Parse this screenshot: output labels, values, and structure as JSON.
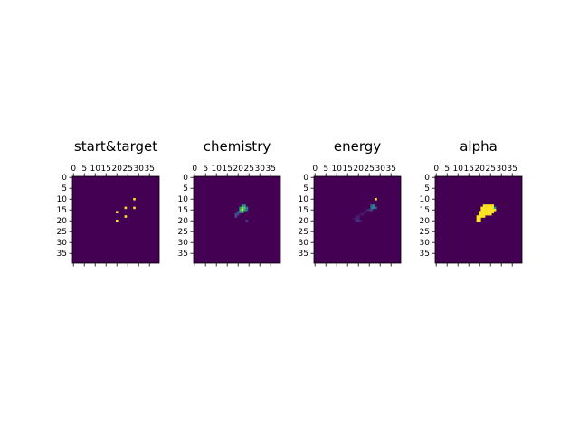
{
  "chart_data": [
    {
      "type": "heatmap",
      "title": "start&target",
      "grid_size": 40,
      "xticks": [
        "0",
        "5",
        "10",
        "15",
        "20",
        "25",
        "30",
        "35"
      ],
      "yticks": [
        "0",
        "5",
        "10",
        "15",
        "20",
        "25",
        "30",
        "35"
      ],
      "background": "#440154",
      "cells": [
        {
          "x": 28,
          "y": 10,
          "v": 1.0
        },
        {
          "x": 24,
          "y": 14,
          "v": 1.0
        },
        {
          "x": 28,
          "y": 14,
          "v": 1.0
        },
        {
          "x": 20,
          "y": 16,
          "v": 1.0
        },
        {
          "x": 24,
          "y": 18,
          "v": 1.0
        },
        {
          "x": 20,
          "y": 20,
          "v": 1.0
        }
      ]
    },
    {
      "type": "heatmap",
      "title": "chemistry",
      "grid_size": 40,
      "xticks": [
        "0",
        "5",
        "10",
        "15",
        "20",
        "25",
        "30",
        "35"
      ],
      "yticks": [
        "0",
        "5",
        "10",
        "15",
        "20",
        "25",
        "30",
        "35"
      ],
      "background": "#440154",
      "cells": [
        {
          "x": 22,
          "y": 13,
          "v": 0.45
        },
        {
          "x": 23,
          "y": 13,
          "v": 0.5
        },
        {
          "x": 21,
          "y": 14,
          "v": 0.55
        },
        {
          "x": 22,
          "y": 14,
          "v": 0.85
        },
        {
          "x": 23,
          "y": 14,
          "v": 0.7
        },
        {
          "x": 24,
          "y": 14,
          "v": 0.4
        },
        {
          "x": 21,
          "y": 15,
          "v": 0.65
        },
        {
          "x": 22,
          "y": 15,
          "v": 0.95
        },
        {
          "x": 23,
          "y": 15,
          "v": 0.6
        },
        {
          "x": 24,
          "y": 15,
          "v": 0.35
        },
        {
          "x": 20,
          "y": 16,
          "v": 0.3
        },
        {
          "x": 21,
          "y": 16,
          "v": 0.45
        },
        {
          "x": 22,
          "y": 16,
          "v": 0.5
        },
        {
          "x": 19,
          "y": 17,
          "v": 0.25
        },
        {
          "x": 20,
          "y": 17,
          "v": 0.2
        },
        {
          "x": 19,
          "y": 18,
          "v": 0.25
        },
        {
          "x": 24,
          "y": 20,
          "v": 0.2
        }
      ]
    },
    {
      "type": "heatmap",
      "title": "energy",
      "grid_size": 40,
      "xticks": [
        "0",
        "5",
        "10",
        "15",
        "20",
        "25",
        "30",
        "35"
      ],
      "yticks": [
        "0",
        "5",
        "10",
        "15",
        "20",
        "25",
        "30",
        "35"
      ],
      "background": "#440154",
      "cells": [
        {
          "x": 28,
          "y": 10,
          "v": 1.0
        },
        {
          "x": 26,
          "y": 13,
          "v": 0.35
        },
        {
          "x": 27,
          "y": 13,
          "v": 0.45
        },
        {
          "x": 26,
          "y": 14,
          "v": 0.4
        },
        {
          "x": 27,
          "y": 14,
          "v": 0.5
        },
        {
          "x": 28,
          "y": 14,
          "v": 0.3
        },
        {
          "x": 25,
          "y": 15,
          "v": 0.15
        },
        {
          "x": 26,
          "y": 15,
          "v": 0.2
        },
        {
          "x": 24,
          "y": 15,
          "v": 0.08
        },
        {
          "x": 23,
          "y": 16,
          "v": 0.08
        },
        {
          "x": 22,
          "y": 17,
          "v": 0.07
        },
        {
          "x": 21,
          "y": 17,
          "v": 0.06
        },
        {
          "x": 20,
          "y": 18,
          "v": 0.08
        },
        {
          "x": 19,
          "y": 18,
          "v": 0.06
        },
        {
          "x": 19,
          "y": 19,
          "v": 0.1
        },
        {
          "x": 20,
          "y": 19,
          "v": 0.09
        },
        {
          "x": 19,
          "y": 20,
          "v": 0.12
        },
        {
          "x": 20,
          "y": 20,
          "v": 0.14
        },
        {
          "x": 21,
          "y": 20,
          "v": 0.07
        },
        {
          "x": 18,
          "y": 19,
          "v": 0.05
        }
      ]
    },
    {
      "type": "heatmap",
      "title": "alpha",
      "grid_size": 40,
      "xticks": [
        "0",
        "5",
        "10",
        "15",
        "20",
        "25",
        "30",
        "35"
      ],
      "yticks": [
        "0",
        "5",
        "10",
        "15",
        "20",
        "25",
        "30",
        "35"
      ],
      "background": "#440154",
      "cells": [
        {
          "x": 22,
          "y": 13,
          "v": 1.0
        },
        {
          "x": 23,
          "y": 13,
          "v": 1.0
        },
        {
          "x": 24,
          "y": 13,
          "v": 1.0
        },
        {
          "x": 25,
          "y": 13,
          "v": 1.0
        },
        {
          "x": 26,
          "y": 13,
          "v": 1.0
        },
        {
          "x": 21,
          "y": 14,
          "v": 1.0
        },
        {
          "x": 22,
          "y": 14,
          "v": 1.0
        },
        {
          "x": 23,
          "y": 14,
          "v": 1.0
        },
        {
          "x": 24,
          "y": 14,
          "v": 1.0
        },
        {
          "x": 25,
          "y": 14,
          "v": 1.0
        },
        {
          "x": 26,
          "y": 14,
          "v": 1.0
        },
        {
          "x": 27,
          "y": 14,
          "v": 0.55
        },
        {
          "x": 21,
          "y": 15,
          "v": 1.0
        },
        {
          "x": 22,
          "y": 15,
          "v": 1.0
        },
        {
          "x": 23,
          "y": 15,
          "v": 1.0
        },
        {
          "x": 24,
          "y": 15,
          "v": 1.0
        },
        {
          "x": 25,
          "y": 15,
          "v": 1.0
        },
        {
          "x": 26,
          "y": 15,
          "v": 1.0
        },
        {
          "x": 27,
          "y": 15,
          "v": 1.0
        },
        {
          "x": 20,
          "y": 16,
          "v": 1.0
        },
        {
          "x": 21,
          "y": 16,
          "v": 1.0
        },
        {
          "x": 22,
          "y": 16,
          "v": 1.0
        },
        {
          "x": 23,
          "y": 16,
          "v": 1.0
        },
        {
          "x": 24,
          "y": 16,
          "v": 1.0
        },
        {
          "x": 25,
          "y": 16,
          "v": 1.0
        },
        {
          "x": 26,
          "y": 16,
          "v": 1.0
        },
        {
          "x": 20,
          "y": 17,
          "v": 1.0
        },
        {
          "x": 21,
          "y": 17,
          "v": 1.0
        },
        {
          "x": 22,
          "y": 17,
          "v": 1.0
        },
        {
          "x": 23,
          "y": 17,
          "v": 1.0
        },
        {
          "x": 24,
          "y": 17,
          "v": 1.0
        },
        {
          "x": 25,
          "y": 17,
          "v": 1.0
        },
        {
          "x": 19,
          "y": 18,
          "v": 1.0
        },
        {
          "x": 20,
          "y": 18,
          "v": 1.0
        },
        {
          "x": 21,
          "y": 18,
          "v": 1.0
        },
        {
          "x": 22,
          "y": 18,
          "v": 1.0
        },
        {
          "x": 19,
          "y": 19,
          "v": 1.0
        },
        {
          "x": 20,
          "y": 19,
          "v": 1.0
        },
        {
          "x": 19,
          "y": 20,
          "v": 1.0
        },
        {
          "x": 20,
          "y": 20,
          "v": 1.0
        }
      ]
    }
  ]
}
